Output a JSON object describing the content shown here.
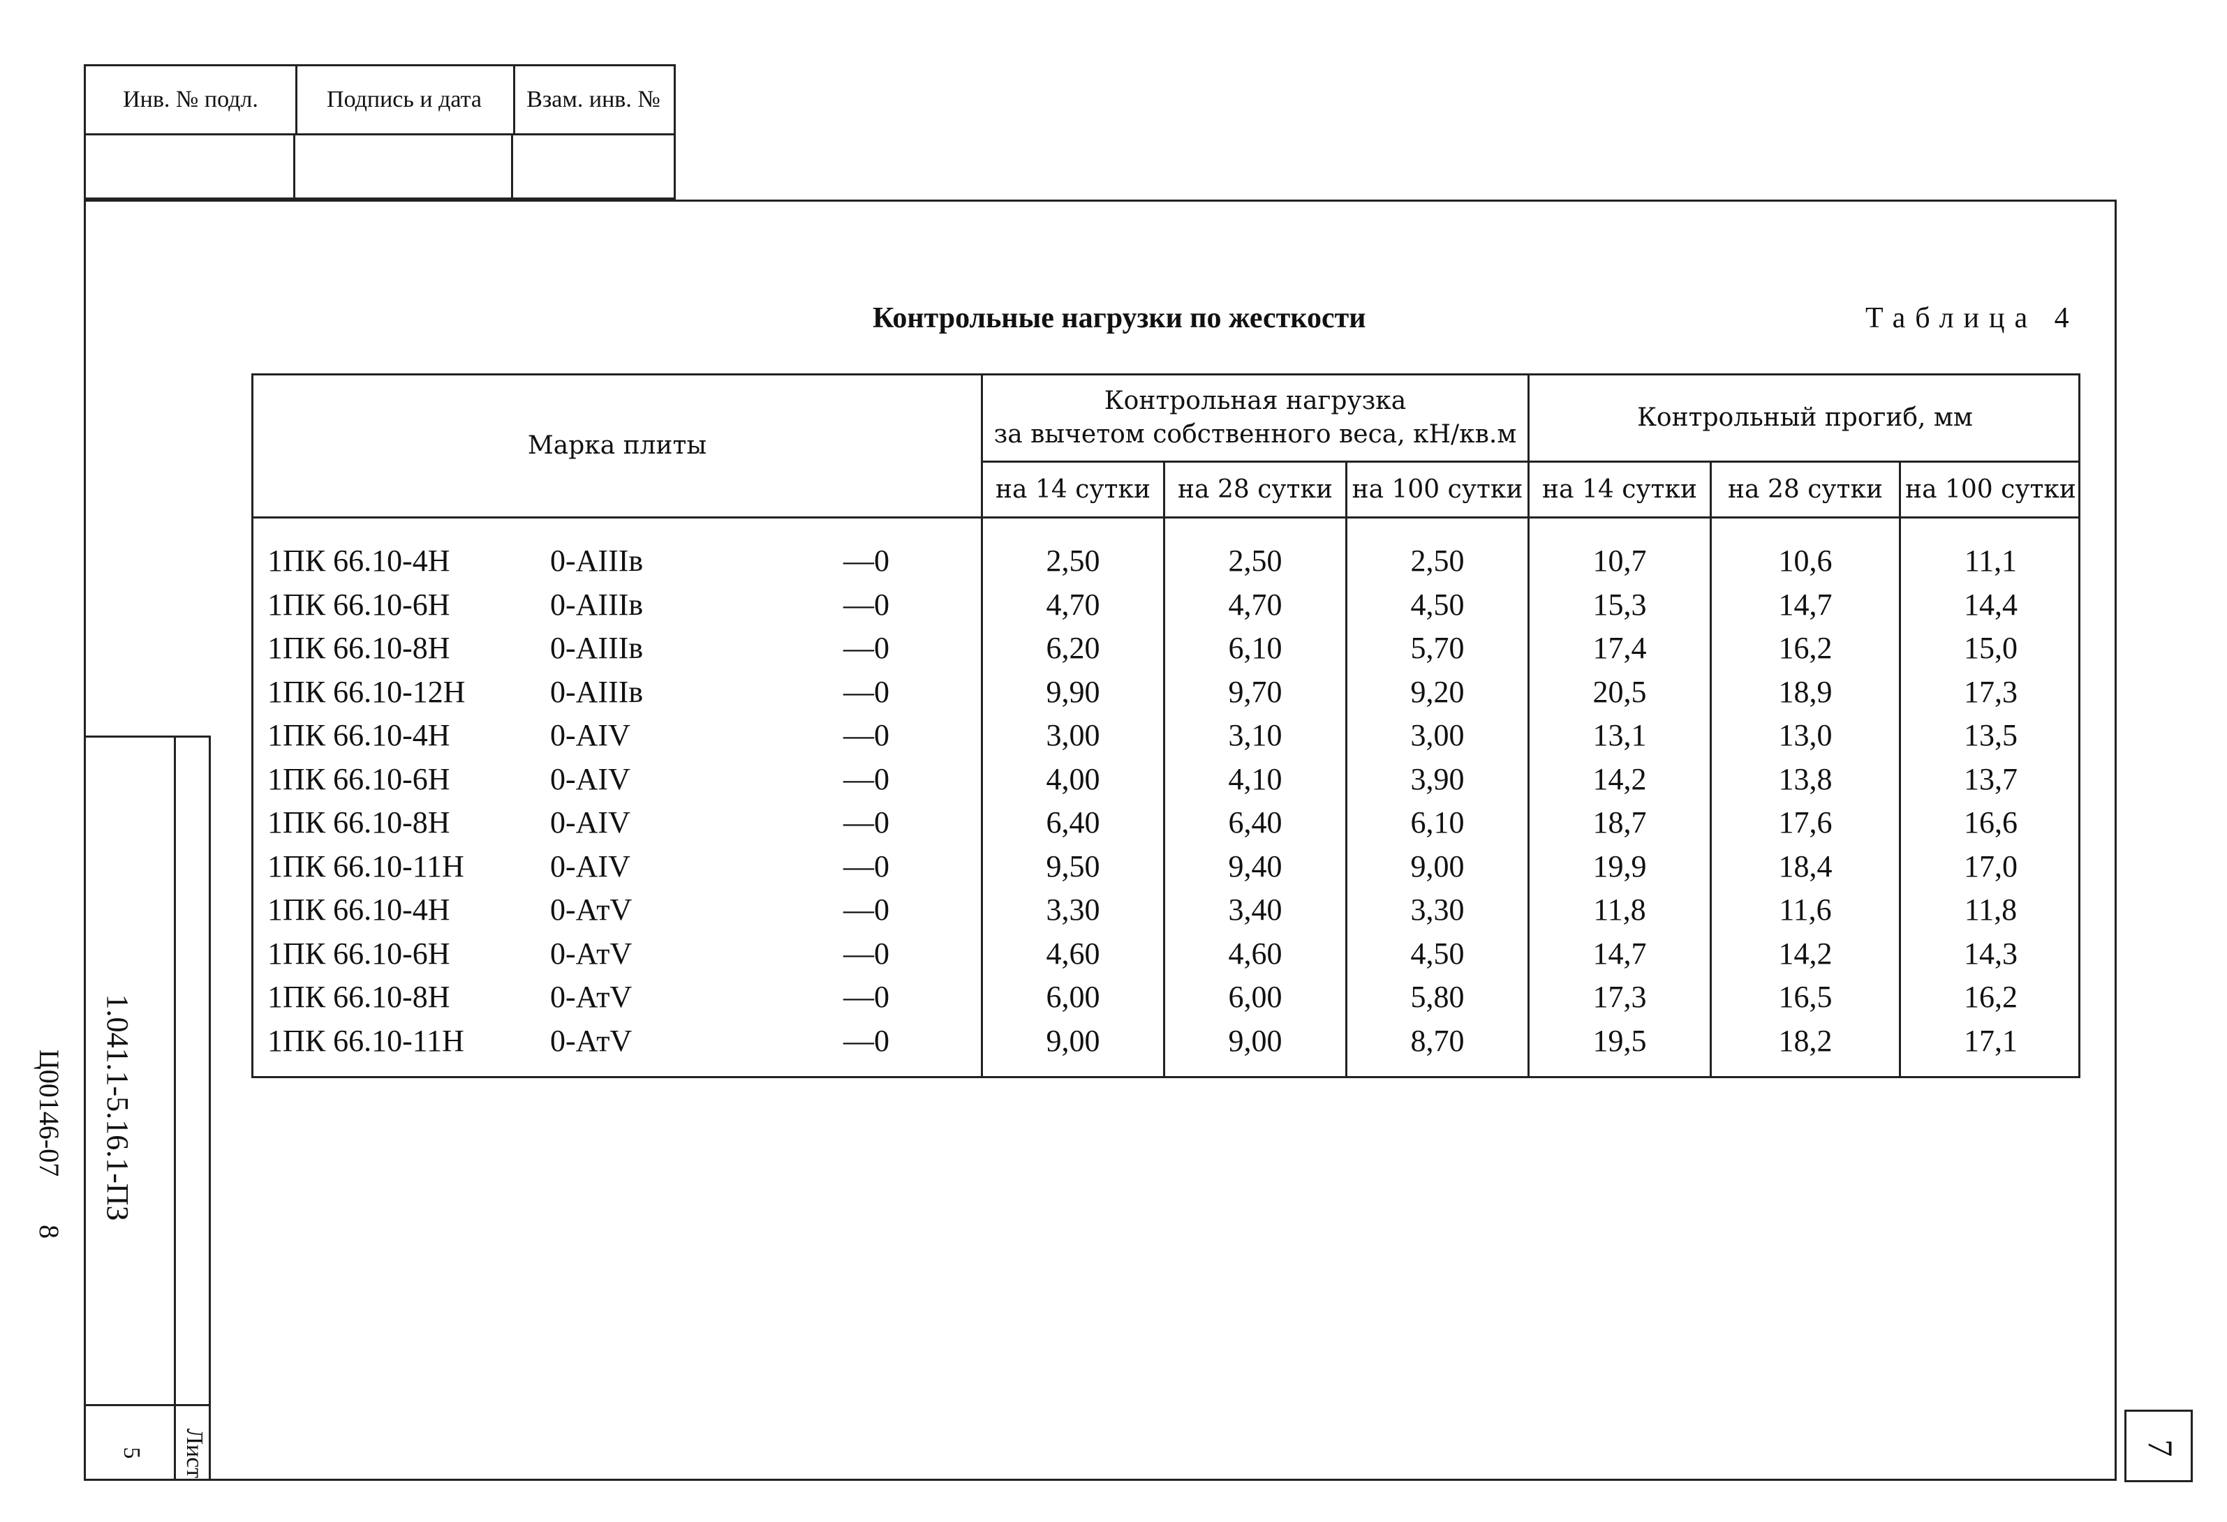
{
  "stamp": {
    "col1": "Инв. № подл.",
    "col2": "Подпись и дата",
    "col3": "Взам. инв. №"
  },
  "side": {
    "doc_code": "1.041.1-5.16.1-ПЗ",
    "sheet_label": "Лист",
    "sheet_number": "5",
    "archive_code": "Ц00146-07",
    "archive_page": "8"
  },
  "page_number": "7",
  "title": "Контрольные нагрузки по жесткости",
  "table_label": "Таблица 4",
  "table": {
    "col_mark": "Марка плиты",
    "group_load": "Контрольная нагрузка\nза вычетом собственного веса, кН/кв.м",
    "group_load_line1": "Контрольная нагрузка",
    "group_load_line2": "за вычетом собственного веса, кН/кв.м",
    "group_deflection": "Контрольный прогиб, мм",
    "sub_headers": [
      "на 14 сутки",
      "на 28 сутки",
      "на 100 сутки",
      "на 14 сутки",
      "на 28 сутки",
      "на 100 сутки"
    ],
    "rows": [
      {
        "mark": "1ПК 66.10-4Н",
        "steel": "0-АIIIв",
        "suffix": "—0",
        "l14": "2,50",
        "l28": "2,50",
        "l100": "2,50",
        "d14": "10,7",
        "d28": "10,6",
        "d100": "11,1"
      },
      {
        "mark": "1ПК 66.10-6Н",
        "steel": "0-АIIIв",
        "suffix": "—0",
        "l14": "4,70",
        "l28": "4,70",
        "l100": "4,50",
        "d14": "15,3",
        "d28": "14,7",
        "d100": "14,4"
      },
      {
        "mark": "1ПК 66.10-8Н",
        "steel": "0-АIIIв",
        "suffix": "—0",
        "l14": "6,20",
        "l28": "6,10",
        "l100": "5,70",
        "d14": "17,4",
        "d28": "16,2",
        "d100": "15,0"
      },
      {
        "mark": "1ПК 66.10-12Н",
        "steel": "0-АIIIв",
        "suffix": "—0",
        "l14": "9,90",
        "l28": "9,70",
        "l100": "9,20",
        "d14": "20,5",
        "d28": "18,9",
        "d100": "17,3"
      },
      {
        "mark": "1ПК 66.10-4Н",
        "steel": "0-АIV",
        "suffix": "—0",
        "l14": "3,00",
        "l28": "3,10",
        "l100": "3,00",
        "d14": "13,1",
        "d28": "13,0",
        "d100": "13,5"
      },
      {
        "mark": "1ПК 66.10-6Н",
        "steel": "0-АIV",
        "suffix": "—0",
        "l14": "4,00",
        "l28": "4,10",
        "l100": "3,90",
        "d14": "14,2",
        "d28": "13,8",
        "d100": "13,7"
      },
      {
        "mark": "1ПК 66.10-8Н",
        "steel": "0-АIV",
        "suffix": "—0",
        "l14": "6,40",
        "l28": "6,40",
        "l100": "6,10",
        "d14": "18,7",
        "d28": "17,6",
        "d100": "16,6"
      },
      {
        "mark": "1ПК 66.10-11Н",
        "steel": "0-АIV",
        "suffix": "—0",
        "l14": "9,50",
        "l28": "9,40",
        "l100": "9,00",
        "d14": "19,9",
        "d28": "18,4",
        "d100": "17,0"
      },
      {
        "mark": "1ПК 66.10-4Н",
        "steel": "0-АтV",
        "suffix": "—0",
        "l14": "3,30",
        "l28": "3,40",
        "l100": "3,30",
        "d14": "11,8",
        "d28": "11,6",
        "d100": "11,8"
      },
      {
        "mark": "1ПК 66.10-6Н",
        "steel": "0-АтV",
        "suffix": "—0",
        "l14": "4,60",
        "l28": "4,60",
        "l100": "4,50",
        "d14": "14,7",
        "d28": "14,2",
        "d100": "14,3"
      },
      {
        "mark": "1ПК 66.10-8Н",
        "steel": "0-АтV",
        "suffix": "—0",
        "l14": "6,00",
        "l28": "6,00",
        "l100": "5,80",
        "d14": "17,3",
        "d28": "16,5",
        "d100": "16,2"
      },
      {
        "mark": "1ПК 66.10-11Н",
        "steel": "0-АтV",
        "suffix": "—0",
        "l14": "9,00",
        "l28": "9,00",
        "l100": "8,70",
        "d14": "19,5",
        "d28": "18,2",
        "d100": "17,1"
      }
    ]
  }
}
